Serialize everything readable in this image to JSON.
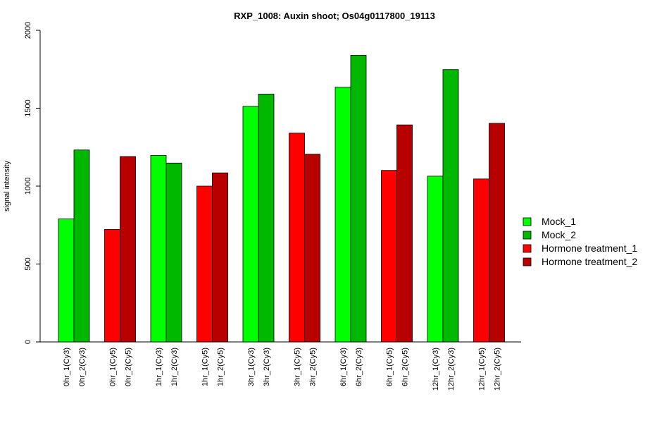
{
  "chart_data": {
    "type": "bar",
    "title": "RXP_1008: Auxin shoot; Os04g0117800_19113",
    "xlabel": "",
    "ylabel": "signal intensity",
    "ylim": [
      0,
      2000
    ],
    "yticks": [
      0,
      500,
      1000,
      1500,
      2000
    ],
    "grid": false,
    "legend_position": "right",
    "categories": [
      "0hr_1(Cy3)",
      "0hr_2(Cy3)",
      "0hr_1(Cy5)",
      "0hr_2(Cy5)",
      "1hr_1(Cy3)",
      "1hr_2(Cy3)",
      "1hr_1(Cy5)",
      "1hr_2(Cy5)",
      "3hr_1(Cy3)",
      "3hr_2(Cy3)",
      "3hr_1(Cy5)",
      "3hr_2(Cy5)",
      "6hr_1(Cy3)",
      "6hr_2(Cy3)",
      "6hr_1(Cy5)",
      "6hr_2(Cy5)",
      "12hr_1(Cy3)",
      "12hr_2(Cy3)",
      "12hr_1(Cy5)",
      "12hr_2(Cy5)"
    ],
    "values": [
      790,
      1232,
      722,
      1190,
      1197,
      1148,
      1000,
      1085,
      1512,
      1591,
      1340,
      1205,
      1635,
      1840,
      1101,
      1393,
      1064,
      1748,
      1046,
      1403
    ],
    "series_index": [
      0,
      1,
      2,
      3,
      0,
      1,
      2,
      3,
      0,
      1,
      2,
      3,
      0,
      1,
      2,
      3,
      0,
      1,
      2,
      3
    ],
    "legend": [
      {
        "name": "Mock_1",
        "color": "#00FF00"
      },
      {
        "name": "Mock_2",
        "color": "#00B800"
      },
      {
        "name": "Hormone treatment_1",
        "color": "#FF0000"
      },
      {
        "name": "Hormone treatment_2",
        "color": "#B80000"
      }
    ]
  }
}
